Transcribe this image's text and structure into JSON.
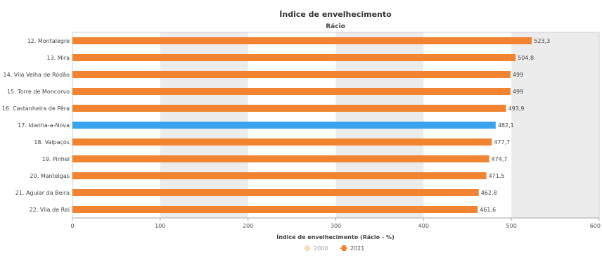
{
  "chart_data": {
    "type": "bar",
    "orientation": "horizontal",
    "title": "Índice de envelhecimento",
    "subtitle": "Rácio",
    "xlabel": "Índice de envelhecimento (Rácio - %)",
    "ylabel": "",
    "xlim": [
      0,
      600
    ],
    "xticks": [
      "0",
      "100",
      "200",
      "300",
      "400",
      "500",
      "600"
    ],
    "grid": "alternating bands",
    "legend_position": "bottom-center",
    "categories": [
      "12. Montalegre",
      "13. Mira",
      "14. Vila Velha de Ródão",
      "15. Torre de Moncorvo",
      "16. Castanheira de Pêra",
      "17. Idanha-a-Nova",
      "18. Valpaços",
      "19. Pinhel",
      "20. Mantelgas",
      "21. Aguiar da Beira",
      "22. Vila de Rei"
    ],
    "series": [
      {
        "name": "2021",
        "color": "#f28330",
        "values": [
          523.3,
          504.8,
          499,
          499,
          493.9,
          482.1,
          477.7,
          474.7,
          471.5,
          462.8,
          461.6
        ],
        "value_labels": [
          "523,3",
          "504,8",
          "499",
          "499",
          "493,9",
          "482,1",
          "477,7",
          "474,7",
          "471,5",
          "462,8",
          "461,6"
        ]
      }
    ],
    "highlight": {
      "category": "17. Idanha-a-Nova",
      "color": "#3aa3f0"
    },
    "legend": [
      {
        "label": "2000",
        "color": "#f7c48f",
        "faded": true
      },
      {
        "label": "2021",
        "color": "#f28330",
        "faded": false
      }
    ]
  }
}
